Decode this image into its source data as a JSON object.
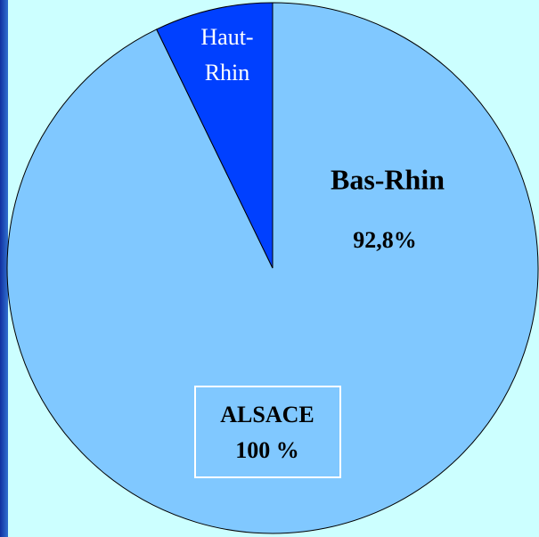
{
  "chart_data": {
    "type": "pie",
    "categories": [
      "Bas-Rhin",
      "Haut-Rhin"
    ],
    "values": [
      92.8,
      7.2
    ],
    "value_labels": [
      "92,8%",
      null
    ],
    "colors": [
      "#80c8ff",
      "#0040ff"
    ],
    "annotation": [
      "ALSACE",
      "100 %"
    ]
  }
}
